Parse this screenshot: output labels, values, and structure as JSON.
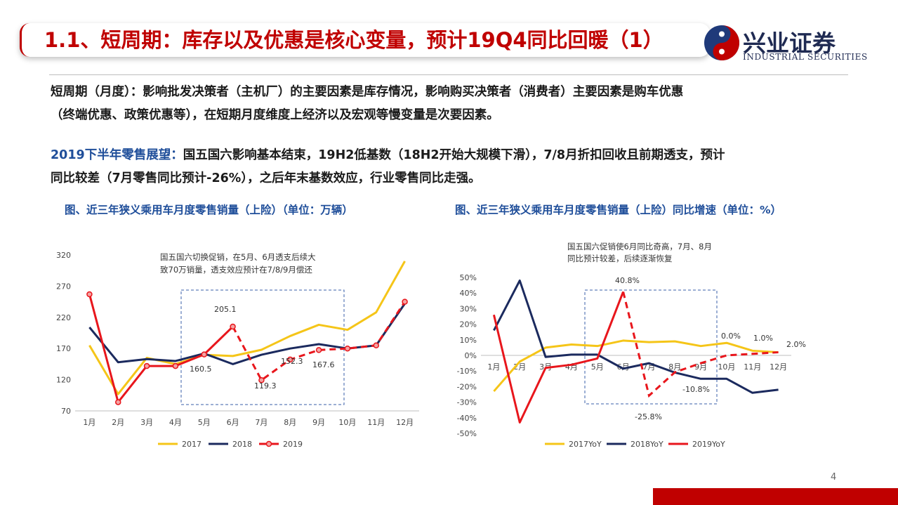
{
  "header": {
    "title": "1.1、短周期：库存以及优惠是核心变量，预计19Q4同比回暖（1）",
    "logo_cn": "兴业证券",
    "logo_en": "INDUSTRIAL SECURITIES"
  },
  "paragraph1": {
    "line1": "短周期（月度）：影响批发决策者（主机厂）的主要因素是库存情况，影响购买决策者（消费者）主要因素是购车优惠",
    "line2": "（终端优惠、政策优惠等），在短期月度维度上经济以及宏观等慢变量是次要因素。"
  },
  "paragraph2": {
    "label": "2019下半年零售展望：",
    "line1": "国五国六影响基本结束，19H2低基数（18H2开始大规模下滑），7/8月折扣回收且前期透支，预计",
    "line2": "同比较差（7月零售同比预计-26%），之后年末基数效应，行业零售同比走强。"
  },
  "page_number": "4",
  "colors": {
    "y2017": "#f5c518",
    "y2018": "#1b2a5e",
    "y2019": "#e8161c",
    "accent": "#c00000",
    "blue_text": "#1f4e9a"
  },
  "chart_data": [
    {
      "type": "line",
      "caption": "图、近三年狭义乘用车月度零售销量（上险）（单位：万辆）",
      "categories": [
        "1月",
        "2月",
        "3月",
        "4月",
        "5月",
        "6月",
        "7月",
        "8月",
        "9月",
        "10月",
        "11月",
        "12月"
      ],
      "ylim": [
        70,
        320
      ],
      "yticks": [
        "70",
        "120",
        "170",
        "220",
        "270",
        "320"
      ],
      "series": [
        {
          "name": "2017",
          "values": [
            175,
            97,
            155,
            145,
            160,
            158,
            168,
            190,
            208,
            200,
            228,
            310
          ]
        },
        {
          "name": "2018",
          "values": [
            204,
            148,
            153,
            150,
            162,
            145,
            160,
            170,
            177,
            170,
            175,
            242
          ]
        },
        {
          "name": "2019",
          "values": [
            257,
            84,
            142,
            142,
            160.5,
            205.1,
            119.3,
            152.3,
            167.6,
            170,
            175,
            245
          ]
        }
      ],
      "labels": [
        "205.1",
        "160.5",
        "119.3",
        "152.3",
        "167.6"
      ],
      "annotation": [
        "国五国六切换促销，在5月、6月透支后续大",
        "致70万销量，透支效应预计在7/8/9月偿还"
      ]
    },
    {
      "type": "line",
      "caption": "图、近三年狭义乘用车月度零售销量（上险）同比增速（单位：%）",
      "categories": [
        "1月",
        "2月",
        "3月",
        "4月",
        "5月",
        "6月",
        "7月",
        "8月",
        "9月",
        "10月",
        "11月",
        "12月"
      ],
      "ylim": [
        -50,
        50
      ],
      "yticks": [
        "-50%",
        "-40%",
        "-30%",
        "-20%",
        "-10%",
        "0%",
        "10%",
        "20%",
        "30%",
        "40%",
        "50%"
      ],
      "series": [
        {
          "name": "2017YoY",
          "values": [
            -23,
            -4,
            5,
            7,
            6,
            9.5,
            8.5,
            9,
            6,
            8,
            3,
            2
          ]
        },
        {
          "name": "2018YoY",
          "values": [
            16,
            48,
            -1,
            0.5,
            0.5,
            -8.5,
            -5,
            -11,
            -15,
            -15,
            -24,
            -22
          ]
        },
        {
          "name": "2019YoY",
          "values": [
            26,
            -43,
            -8,
            -6,
            -2,
            40.8,
            -25.8,
            -10.8,
            -5,
            0,
            1,
            2
          ]
        }
      ],
      "labels": [
        "40.8%",
        "-25.8%",
        "-10.8%",
        "0.0%",
        "1.0%",
        "2.0%"
      ],
      "annotation": [
        "国五国六促销使6月同比奇高，7月、8月",
        "同比预计较差，后续逐渐恢复"
      ]
    }
  ]
}
